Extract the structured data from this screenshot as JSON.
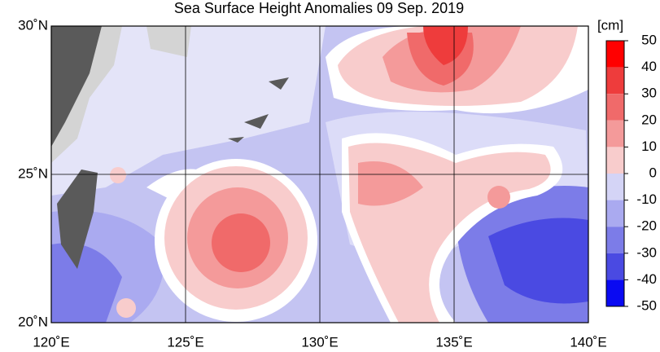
{
  "title": "Sea Surface Height Anomalies  09 Sep. 2019",
  "x_axis": {
    "lim": [
      120,
      140
    ],
    "ticks": [
      {
        "value": 120,
        "label": "120˚E"
      },
      {
        "value": 125,
        "label": "125˚E"
      },
      {
        "value": 130,
        "label": "130˚E"
      },
      {
        "value": 135,
        "label": "135˚E"
      },
      {
        "value": 140,
        "label": "140˚E"
      }
    ]
  },
  "y_axis": {
    "lim": [
      20,
      30
    ],
    "ticks": [
      {
        "value": 20,
        "label": "20˚N"
      },
      {
        "value": 25,
        "label": "25˚N"
      },
      {
        "value": 30,
        "label": "30˚N"
      }
    ]
  },
  "colorbar": {
    "unit": "[cm]",
    "lim": [
      -50,
      50
    ],
    "ticks": [
      50,
      40,
      30,
      20,
      10,
      0,
      -10,
      -20,
      -30,
      -40,
      -50
    ],
    "colors": [
      "#ff0000",
      "#ee3c3c",
      "#f06a6a",
      "#f49a9a",
      "#f8cccc",
      "#d4d4f6",
      "#aaaaf0",
      "#7c7ce8",
      "#4a4ae2",
      "#0a0af2"
    ]
  }
}
